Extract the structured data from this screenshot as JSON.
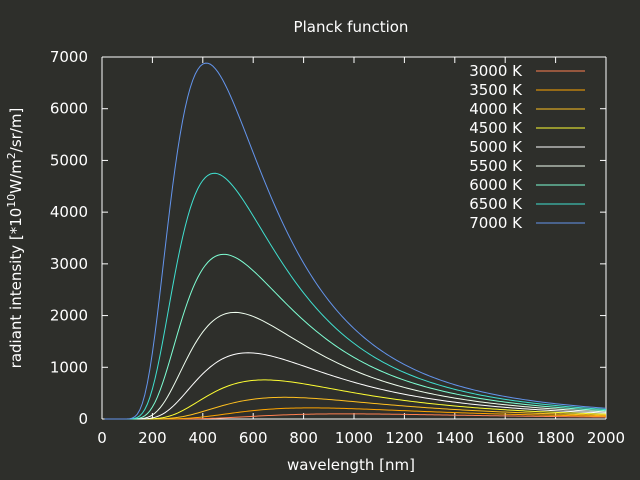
{
  "chart_data": {
    "type": "line",
    "title": "Planck function",
    "xlabel": "wavelength [nm]",
    "ylabel": {
      "prefix": "radiant intensity [*10",
      "exp1": "10",
      "mid": "W/m",
      "exp2": "2",
      "suffix": "/sr/m]"
    },
    "xlim": [
      0,
      2000
    ],
    "ylim": [
      0,
      7000
    ],
    "x_ticks": [
      "0",
      "200",
      "400",
      "600",
      "800",
      "1000",
      "1200",
      "1400",
      "1600",
      "1800",
      "2000"
    ],
    "y_ticks": [
      "0",
      "1000",
      "2000",
      "3000",
      "4000",
      "5000",
      "6000",
      "7000"
    ],
    "grid": false,
    "legend_position": "top-right",
    "x_sample_step": 10,
    "series": [
      {
        "name": "3000 K",
        "temperature": 3000,
        "color": "#ff7f50"
      },
      {
        "name": "3500 K",
        "temperature": 3500,
        "color": "#ffa500"
      },
      {
        "name": "4000 K",
        "temperature": 4000,
        "color": "#ffc020"
      },
      {
        "name": "4500 K",
        "temperature": 4500,
        "color": "#ffff33"
      },
      {
        "name": "5000 K",
        "temperature": 5000,
        "color": "#ffffff"
      },
      {
        "name": "5500 K",
        "temperature": 5500,
        "color": "#f0fff0"
      },
      {
        "name": "6000 K",
        "temperature": 6000,
        "color": "#7fffd4"
      },
      {
        "name": "6500 K",
        "temperature": 6500,
        "color": "#40e0d0"
      },
      {
        "name": "7000 K",
        "temperature": 7000,
        "color": "#6495ed"
      }
    ]
  }
}
